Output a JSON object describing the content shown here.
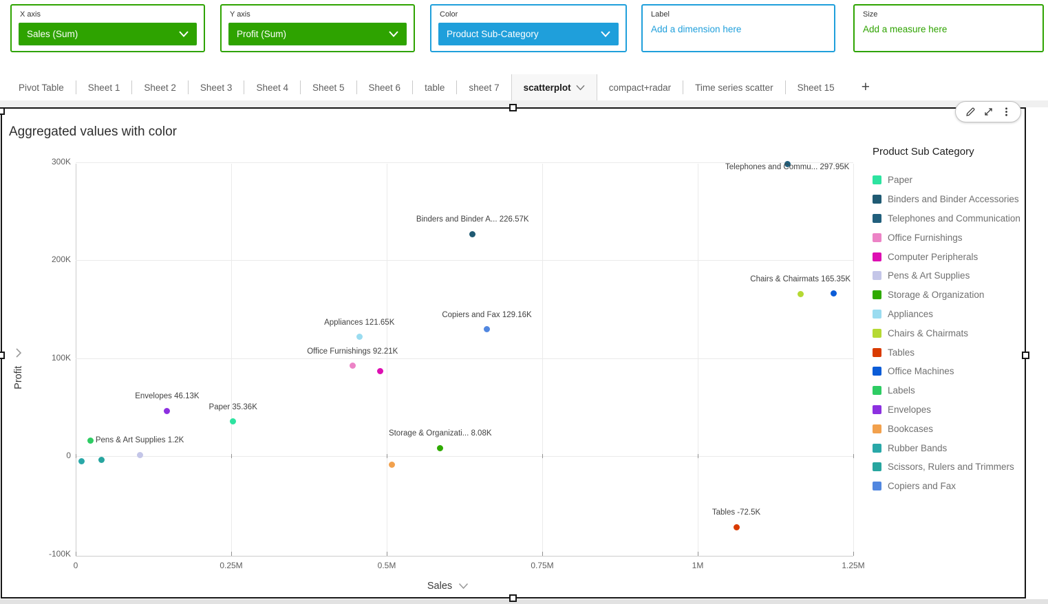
{
  "field_wells": [
    {
      "label": "X axis",
      "value": "Sales (Sum)",
      "style": "pill-green"
    },
    {
      "label": "Y axis",
      "value": "Profit (Sum)",
      "style": "pill-green"
    },
    {
      "label": "Color",
      "value": "Product Sub-Category",
      "style": "pill-blue"
    },
    {
      "label": "Label",
      "value": "Add a dimension here",
      "style": "link-blue"
    },
    {
      "label": "Size",
      "value": "Add a measure here",
      "style": "link-green"
    }
  ],
  "colors": {
    "green": "#2ea300",
    "blue": "#1f9fdb"
  },
  "tabs": {
    "items": [
      "Pivot Table",
      "Sheet 1",
      "Sheet 2",
      "Sheet 3",
      "Sheet 4",
      "Sheet 5",
      "Sheet 6",
      "table",
      "sheet 7",
      "scatterplot",
      "compact+radar",
      "Time series scatter",
      "Sheet 15"
    ],
    "active": "scatterplot",
    "add_label": "+"
  },
  "widget": {
    "title": "Aggregated values with color",
    "toolbar_icons": [
      "edit-icon",
      "expand-icon",
      "kebab-menu-icon"
    ]
  },
  "chart_data": {
    "type": "scatter",
    "title": "Aggregated values with color",
    "xlabel": "Sales",
    "ylabel": "Profit",
    "xlim_millions": [
      0,
      1.25
    ],
    "ylim_thousands": [
      -100,
      300
    ],
    "grid": true,
    "x_ticks": [
      {
        "v": 0,
        "label": "0"
      },
      {
        "v": 0.25,
        "label": "0.25M"
      },
      {
        "v": 0.5,
        "label": "0.5M"
      },
      {
        "v": 0.75,
        "label": "0.75M"
      },
      {
        "v": 1,
        "label": "1M"
      },
      {
        "v": 1.25,
        "label": "1.25M"
      }
    ],
    "y_ticks": [
      {
        "v": 300,
        "label": "300K"
      },
      {
        "v": 200,
        "label": "200K"
      },
      {
        "v": 100,
        "label": "100K"
      },
      {
        "v": 0,
        "label": "0"
      },
      {
        "v": -100,
        "label": "-100K"
      }
    ],
    "points": [
      {
        "name": "Telephones and Communication",
        "sales_m": 1.144,
        "profit_k": 297.95,
        "label": "Telephones and Commu... 297.95K",
        "color": "#215f7c"
      },
      {
        "name": "Binders and Binder Accessories",
        "sales_m": 0.638,
        "profit_k": 226.57,
        "label": "Binders and Binder A... 226.57K",
        "color": "#1f5a73"
      },
      {
        "name": "Chairs & Chairmats",
        "sales_m": 1.165,
        "profit_k": 165.35,
        "label": "Chairs & Chairmats 165.35K",
        "color": "#b5d933"
      },
      {
        "name": "Office Machines",
        "sales_m": 1.218,
        "profit_k": 166,
        "label": "",
        "color": "#0b5cd7"
      },
      {
        "name": "Copiers and Fax",
        "sales_m": 0.661,
        "profit_k": 129.16,
        "label": "Copiers and Fax 129.16K",
        "color": "#5187e0"
      },
      {
        "name": "Appliances",
        "sales_m": 0.456,
        "profit_k": 121.65,
        "label": "Appliances 121.65K",
        "color": "#9adcf0"
      },
      {
        "name": "Office Furnishings",
        "sales_m": 0.445,
        "profit_k": 92.21,
        "label": "Office Furnishings 92.21K",
        "color": "#ec83c6"
      },
      {
        "name": "Computer Peripherals",
        "sales_m": 0.49,
        "profit_k": 87,
        "label": "",
        "color": "#dd0fb2"
      },
      {
        "name": "Envelopes",
        "sales_m": 0.147,
        "profit_k": 46.13,
        "label": "Envelopes 46.13K",
        "color": "#8c30e0"
      },
      {
        "name": "Paper",
        "sales_m": 0.253,
        "profit_k": 35.36,
        "label": "Paper 35.36K",
        "color": "#2de3a0"
      },
      {
        "name": "Labels",
        "sales_m": 0.024,
        "profit_k": 16,
        "label": "",
        "color": "#2ecc63"
      },
      {
        "name": "Pens & Art Supplies",
        "sales_m": 0.103,
        "profit_k": 1.2,
        "label": "Pens & Art Supplies 1.2K",
        "color": "#c4c6e8"
      },
      {
        "name": "Storage & Organization",
        "sales_m": 0.586,
        "profit_k": 8.08,
        "label": "Storage & Organizati... 8.08K",
        "color": "#2faa00"
      },
      {
        "name": "Rubber Bands",
        "sales_m": 0.009,
        "profit_k": -5,
        "label": "",
        "color": "#29a8a8"
      },
      {
        "name": "Scissors, Rulers and Trimmers",
        "sales_m": 0.041,
        "profit_k": -4,
        "label": "",
        "color": "#27a59f"
      },
      {
        "name": "Bookcases",
        "sales_m": 0.508,
        "profit_k": -9,
        "label": "",
        "color": "#f2a14d"
      },
      {
        "name": "Tables",
        "sales_m": 1.062,
        "profit_k": -72.5,
        "label": "Tables -72.5K",
        "color": "#d93b00"
      }
    ],
    "legend_title": "Product Sub Category",
    "legend_position": "right",
    "legend": [
      {
        "label": "Paper",
        "color": "#2de3a0"
      },
      {
        "label": "Binders and Binder Accessories",
        "color": "#1f5a73"
      },
      {
        "label": "Telephones and Communication",
        "color": "#215f7c"
      },
      {
        "label": "Office Furnishings",
        "color": "#ec83c6"
      },
      {
        "label": "Computer Peripherals",
        "color": "#dd0fb2"
      },
      {
        "label": "Pens & Art Supplies",
        "color": "#c4c6e8"
      },
      {
        "label": "Storage & Organization",
        "color": "#2faa00"
      },
      {
        "label": "Appliances",
        "color": "#9adcf0"
      },
      {
        "label": "Chairs & Chairmats",
        "color": "#b5d933"
      },
      {
        "label": "Tables",
        "color": "#d93b00"
      },
      {
        "label": "Office Machines",
        "color": "#0b5cd7"
      },
      {
        "label": "Labels",
        "color": "#2ecc63"
      },
      {
        "label": "Envelopes",
        "color": "#8c30e0"
      },
      {
        "label": "Bookcases",
        "color": "#f2a14d"
      },
      {
        "label": "Rubber Bands",
        "color": "#29a8a8"
      },
      {
        "label": "Scissors, Rulers and Trimmers",
        "color": "#27a59f"
      },
      {
        "label": "Copiers and Fax",
        "color": "#5187e0"
      }
    ]
  }
}
